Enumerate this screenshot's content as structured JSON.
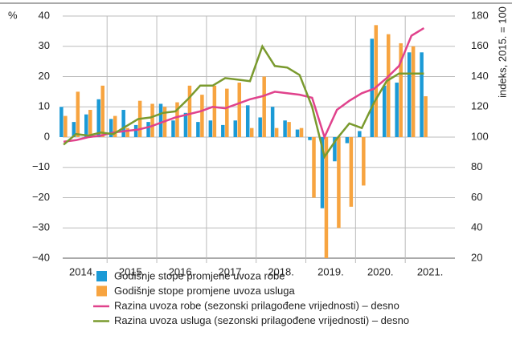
{
  "chart_data": {
    "type": "bar_line",
    "y_label": "%",
    "y2_label": "indeks, 2015. = 100",
    "categories": [
      null,
      "2014.",
      null,
      null,
      null,
      "2015.",
      null,
      null,
      null,
      "2016.",
      null,
      null,
      null,
      "2017.",
      null,
      null,
      null,
      "2018.",
      null,
      null,
      null,
      "2019.",
      null,
      null,
      null,
      "2020.",
      null,
      null,
      null,
      "2021.",
      null,
      null
    ],
    "ylim": [
      -40,
      40
    ],
    "yticks": [
      {
        "value": -40,
        "label": "−40"
      },
      {
        "value": -30,
        "label": "−30"
      },
      {
        "value": -20,
        "label": "−20"
      },
      {
        "value": -10,
        "label": "−10"
      },
      0,
      10,
      20,
      30,
      40
    ],
    "y2lim": [
      20,
      180
    ],
    "y2ticks": [
      20,
      40,
      60,
      80,
      100,
      120,
      140,
      160,
      180
    ],
    "grid": true,
    "series": [
      {
        "name": "Godišnje stope promjene uvoza robe",
        "kind": "bar",
        "color": "#1b9ad6",
        "values": [
          10,
          5,
          7.5,
          12.5,
          6,
          9,
          4,
          5,
          11,
          5.5,
          8,
          5,
          5.5,
          4,
          5.5,
          10.5,
          6.5,
          10,
          5.5,
          2.5,
          -1,
          -23.5,
          -8,
          -2,
          2,
          32.5,
          17,
          18,
          28,
          28,
          null,
          null
        ]
      },
      {
        "name": "Godišnje stope promjene uvoza usluga",
        "kind": "bar",
        "color": "#f7a440",
        "values": [
          7,
          15,
          9,
          17,
          7,
          3,
          12,
          11,
          10,
          11.5,
          17,
          14,
          17,
          16,
          18,
          3,
          20,
          3,
          5,
          3,
          -20,
          -40,
          -30,
          -23,
          -16,
          37,
          34,
          31,
          30,
          13.5,
          null,
          null
        ]
      },
      {
        "name": "Razina uvoza robe (sezonski prilagođene vrijednosti) – desno",
        "kind": "line",
        "axis": "y2",
        "color": "#e0428c",
        "values": [
          97,
          98,
          100,
          101,
          103,
          104,
          105,
          107,
          110,
          113,
          115,
          117,
          120,
          119,
          122,
          125,
          127,
          130,
          129,
          128,
          126,
          100,
          118,
          124,
          129,
          132,
          139,
          147,
          167,
          172,
          null,
          null
        ]
      },
      {
        "name": "Razina uvoza usluga (sezonski prilagođene vrijednosti) – desno",
        "kind": "line",
        "axis": "y2",
        "color": "#7a9a2e",
        "values": [
          95,
          102,
          101,
          103,
          102,
          107,
          112,
          113,
          116,
          117,
          125,
          134,
          134,
          139,
          138,
          137,
          160,
          147,
          146,
          141,
          120,
          87,
          99,
          109,
          106,
          123,
          137,
          142,
          142,
          142,
          null,
          null
        ]
      }
    ]
  }
}
